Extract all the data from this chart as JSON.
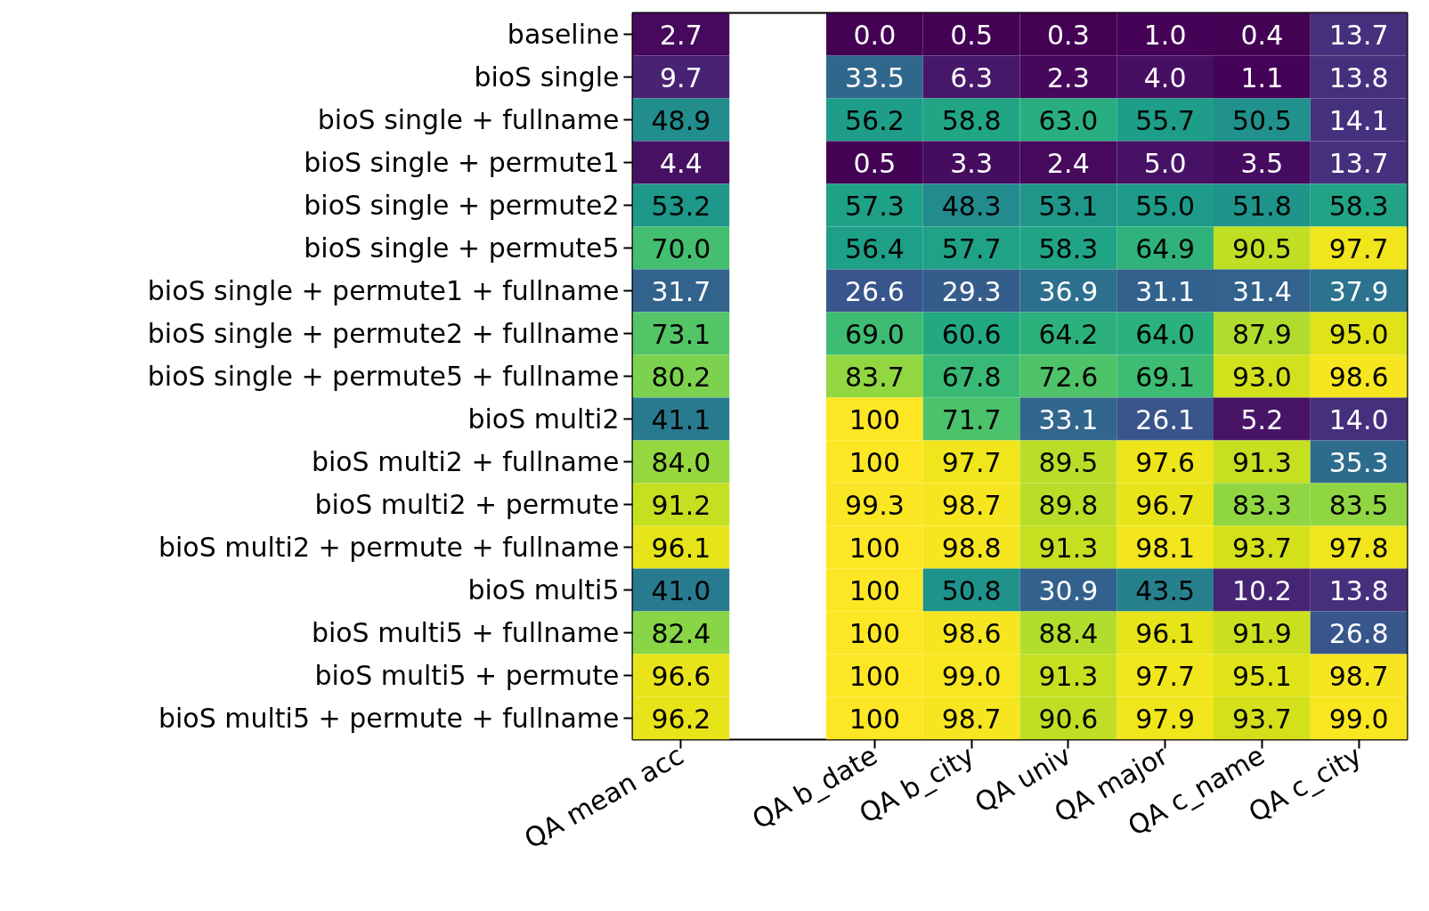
{
  "chart_data": {
    "type": "heatmap",
    "categories": [
      "QA mean acc",
      null,
      "QA b_date",
      "QA b_city",
      "QA univ",
      "QA major",
      "QA c_name",
      "QA c_city"
    ],
    "y_categories": [
      "baseline",
      "bioS single",
      "bioS single + fullname",
      "bioS single + permute1",
      "bioS single + permute2",
      "bioS single + permute5",
      "bioS single + permute1 + fullname",
      "bioS single + permute2 + fullname",
      "bioS single + permute5 + fullname",
      "bioS multi2",
      "bioS multi2 + fullname",
      "bioS multi2 + permute",
      "bioS multi2 + permute + fullname",
      "bioS multi5",
      "bioS multi5 + fullname",
      "bioS multi5 + permute",
      "bioS multi5 + permute + fullname"
    ],
    "cells": [
      [
        2.7,
        null,
        0.0,
        0.5,
        0.3,
        1.0,
        0.4,
        13.7
      ],
      [
        9.7,
        null,
        33.5,
        6.3,
        2.3,
        4.0,
        1.1,
        13.8
      ],
      [
        48.9,
        null,
        56.2,
        58.8,
        63.0,
        55.7,
        50.5,
        14.1
      ],
      [
        4.4,
        null,
        0.5,
        3.3,
        2.4,
        5.0,
        3.5,
        13.7
      ],
      [
        53.2,
        null,
        57.3,
        48.3,
        53.1,
        55.0,
        51.8,
        58.3
      ],
      [
        70.0,
        null,
        56.4,
        57.7,
        58.3,
        64.9,
        90.5,
        97.7
      ],
      [
        31.7,
        null,
        26.6,
        29.3,
        36.9,
        31.1,
        31.4,
        37.9
      ],
      [
        73.1,
        null,
        69.0,
        60.6,
        64.2,
        64.0,
        87.9,
        95.0
      ],
      [
        80.2,
        null,
        83.7,
        67.8,
        72.6,
        69.1,
        93.0,
        98.6
      ],
      [
        41.1,
        null,
        100,
        71.7,
        33.1,
        26.1,
        5.2,
        14.0
      ],
      [
        84.0,
        null,
        100,
        97.7,
        89.5,
        97.6,
        91.3,
        35.3
      ],
      [
        91.2,
        null,
        99.3,
        98.7,
        89.8,
        96.7,
        83.3,
        83.5
      ],
      [
        96.1,
        null,
        100,
        98.8,
        91.3,
        98.1,
        93.7,
        97.8
      ],
      [
        41.0,
        null,
        100,
        50.8,
        30.9,
        43.5,
        10.2,
        13.8
      ],
      [
        82.4,
        null,
        100,
        98.6,
        88.4,
        96.1,
        91.9,
        26.8
      ],
      [
        96.6,
        null,
        100,
        99.0,
        91.3,
        97.7,
        95.1,
        98.7
      ],
      [
        96.2,
        null,
        100,
        98.7,
        90.6,
        97.9,
        93.7,
        99.0
      ]
    ],
    "cell_labels": [
      [
        "2.7",
        null,
        "0.0",
        "0.5",
        "0.3",
        "1.0",
        "0.4",
        "13.7"
      ],
      [
        "9.7",
        null,
        "33.5",
        "6.3",
        "2.3",
        "4.0",
        "1.1",
        "13.8"
      ],
      [
        "48.9",
        null,
        "56.2",
        "58.8",
        "63.0",
        "55.7",
        "50.5",
        "14.1"
      ],
      [
        "4.4",
        null,
        "0.5",
        "3.3",
        "2.4",
        "5.0",
        "3.5",
        "13.7"
      ],
      [
        "53.2",
        null,
        "57.3",
        "48.3",
        "53.1",
        "55.0",
        "51.8",
        "58.3"
      ],
      [
        "70.0",
        null,
        "56.4",
        "57.7",
        "58.3",
        "64.9",
        "90.5",
        "97.7"
      ],
      [
        "31.7",
        null,
        "26.6",
        "29.3",
        "36.9",
        "31.1",
        "31.4",
        "37.9"
      ],
      [
        "73.1",
        null,
        "69.0",
        "60.6",
        "64.2",
        "64.0",
        "87.9",
        "95.0"
      ],
      [
        "80.2",
        null,
        "83.7",
        "67.8",
        "72.6",
        "69.1",
        "93.0",
        "98.6"
      ],
      [
        "41.1",
        null,
        "100",
        "71.7",
        "33.1",
        "26.1",
        "5.2",
        "14.0"
      ],
      [
        "84.0",
        null,
        "100",
        "97.7",
        "89.5",
        "97.6",
        "91.3",
        "35.3"
      ],
      [
        "91.2",
        null,
        "99.3",
        "98.7",
        "89.8",
        "96.7",
        "83.3",
        "83.5"
      ],
      [
        "96.1",
        null,
        "100",
        "98.8",
        "91.3",
        "98.1",
        "93.7",
        "97.8"
      ],
      [
        "41.0",
        null,
        "100",
        "50.8",
        "30.9",
        "43.5",
        "10.2",
        "13.8"
      ],
      [
        "82.4",
        null,
        "100",
        "98.6",
        "88.4",
        "96.1",
        "91.9",
        "26.8"
      ],
      [
        "96.6",
        null,
        "100",
        "99.0",
        "91.3",
        "97.7",
        "95.1",
        "98.7"
      ],
      [
        "96.2",
        null,
        "100",
        "98.7",
        "90.6",
        "97.9",
        "93.7",
        "99.0"
      ]
    ]
  }
}
